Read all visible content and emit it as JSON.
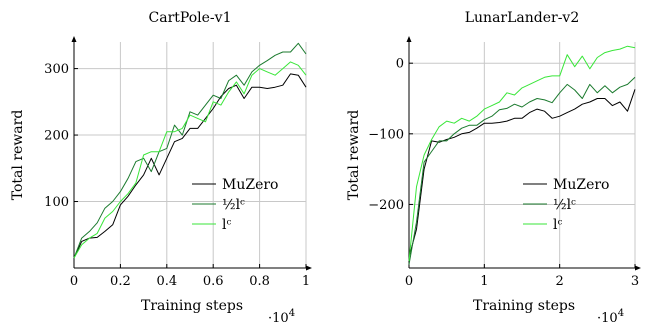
{
  "chart_data": [
    {
      "type": "line",
      "title": "CartPole-v1",
      "xlabel": "Training steps",
      "ylabel": "Total reward",
      "x_multiplier": "·10",
      "x_multiplier_exp": "4",
      "xlim": [
        0,
        1
      ],
      "ylim": [
        0,
        340
      ],
      "xticks": [
        "0",
        "0.2",
        "0.4",
        "0.6",
        "0.8",
        "1"
      ],
      "yticks": [
        "100",
        "200",
        "300"
      ],
      "legend": {
        "position": "bottom-right"
      },
      "grid": true,
      "series": [
        {
          "name": "MuZero",
          "color": "#000000",
          "x": [
            0,
            0.033,
            0.067,
            0.1,
            0.133,
            0.167,
            0.2,
            0.233,
            0.267,
            0.3,
            0.333,
            0.367,
            0.4,
            0.433,
            0.467,
            0.5,
            0.533,
            0.567,
            0.6,
            0.633,
            0.667,
            0.7,
            0.733,
            0.767,
            0.8,
            0.833,
            0.867,
            0.9,
            0.933,
            0.967,
            1.0
          ],
          "y": [
            15,
            40,
            45,
            46,
            55,
            65,
            95,
            108,
            125,
            140,
            165,
            140,
            165,
            190,
            195,
            210,
            210,
            225,
            240,
            258,
            270,
            275,
            255,
            272,
            272,
            270,
            272,
            275,
            292,
            290,
            272
          ]
        },
        {
          "name": "½lᶜ",
          "color": "#1b7a2e",
          "x": [
            0,
            0.033,
            0.067,
            0.1,
            0.133,
            0.167,
            0.2,
            0.233,
            0.267,
            0.3,
            0.333,
            0.367,
            0.4,
            0.433,
            0.467,
            0.5,
            0.533,
            0.567,
            0.6,
            0.633,
            0.667,
            0.7,
            0.733,
            0.767,
            0.8,
            0.833,
            0.867,
            0.9,
            0.933,
            0.967,
            1.0
          ],
          "y": [
            15,
            45,
            55,
            68,
            90,
            100,
            115,
            135,
            160,
            165,
            145,
            175,
            180,
            215,
            200,
            235,
            230,
            245,
            260,
            255,
            282,
            290,
            275,
            295,
            305,
            312,
            320,
            325,
            325,
            338,
            322
          ]
        },
        {
          "name": "lᶜ",
          "color": "#39e639",
          "x": [
            0,
            0.033,
            0.067,
            0.1,
            0.133,
            0.167,
            0.2,
            0.233,
            0.267,
            0.3,
            0.333,
            0.367,
            0.4,
            0.433,
            0.467,
            0.5,
            0.533,
            0.567,
            0.6,
            0.633,
            0.667,
            0.7,
            0.733,
            0.767,
            0.8,
            0.833,
            0.867,
            0.9,
            0.933,
            0.967,
            1.0
          ],
          "y": [
            15,
            35,
            45,
            52,
            75,
            85,
            100,
            112,
            128,
            170,
            175,
            175,
            205,
            205,
            210,
            230,
            225,
            220,
            250,
            245,
            265,
            280,
            262,
            290,
            300,
            295,
            290,
            300,
            310,
            305,
            290
          ]
        }
      ]
    },
    {
      "type": "line",
      "title": "LunarLander-v2",
      "xlabel": "Training steps",
      "ylabel": "Total reward",
      "x_multiplier": "·10",
      "x_multiplier_exp": "4",
      "xlim": [
        0,
        3
      ],
      "ylim": [
        -290,
        30
      ],
      "xticks": [
        "0",
        "1",
        "2",
        "3"
      ],
      "yticks": [
        "−200",
        "−100",
        "0"
      ],
      "legend": {
        "position": "bottom-right"
      },
      "grid": true,
      "series": [
        {
          "name": "MuZero",
          "color": "#000000",
          "x": [
            0,
            0.1,
            0.2,
            0.3,
            0.4,
            0.5,
            0.6,
            0.7,
            0.8,
            0.9,
            1.0,
            1.1,
            1.2,
            1.3,
            1.4,
            1.5,
            1.6,
            1.7,
            1.8,
            1.9,
            2.0,
            2.1,
            2.2,
            2.3,
            2.4,
            2.5,
            2.6,
            2.7,
            2.8,
            2.9,
            3.0
          ],
          "y": [
            -275,
            -235,
            -150,
            -110,
            -112,
            -108,
            -105,
            -100,
            -98,
            -92,
            -85,
            -85,
            -84,
            -82,
            -78,
            -78,
            -70,
            -65,
            -68,
            -78,
            -75,
            -70,
            -65,
            -58,
            -55,
            -50,
            -50,
            -60,
            -55,
            -68,
            -37
          ]
        },
        {
          "name": "½lᶜ",
          "color": "#1b7a2e",
          "x": [
            0,
            0.1,
            0.2,
            0.3,
            0.4,
            0.5,
            0.6,
            0.7,
            0.8,
            0.9,
            1.0,
            1.1,
            1.2,
            1.3,
            1.4,
            1.5,
            1.6,
            1.7,
            1.8,
            1.9,
            2.0,
            2.1,
            2.2,
            2.3,
            2.4,
            2.5,
            2.6,
            2.7,
            2.8,
            2.9,
            3.0
          ],
          "y": [
            -285,
            -225,
            -140,
            -125,
            -110,
            -110,
            -100,
            -92,
            -88,
            -88,
            -80,
            -75,
            -66,
            -64,
            -58,
            -62,
            -55,
            -50,
            -52,
            -56,
            -42,
            -30,
            -38,
            -50,
            -30,
            -42,
            -32,
            -42,
            -34,
            -30,
            -20
          ]
        },
        {
          "name": "lᶜ",
          "color": "#39e639",
          "x": [
            0,
            0.1,
            0.2,
            0.3,
            0.4,
            0.5,
            0.6,
            0.7,
            0.8,
            0.9,
            1.0,
            1.1,
            1.2,
            1.3,
            1.4,
            1.5,
            1.6,
            1.7,
            1.8,
            1.9,
            2.0,
            2.1,
            2.2,
            2.3,
            2.4,
            2.5,
            2.6,
            2.7,
            2.8,
            2.9,
            3.0
          ],
          "y": [
            -280,
            -175,
            -130,
            -108,
            -90,
            -82,
            -85,
            -78,
            -82,
            -75,
            -65,
            -60,
            -55,
            -42,
            -45,
            -35,
            -30,
            -25,
            -20,
            -18,
            -18,
            12,
            -5,
            10,
            -8,
            8,
            15,
            18,
            20,
            24,
            22
          ]
        }
      ]
    }
  ]
}
